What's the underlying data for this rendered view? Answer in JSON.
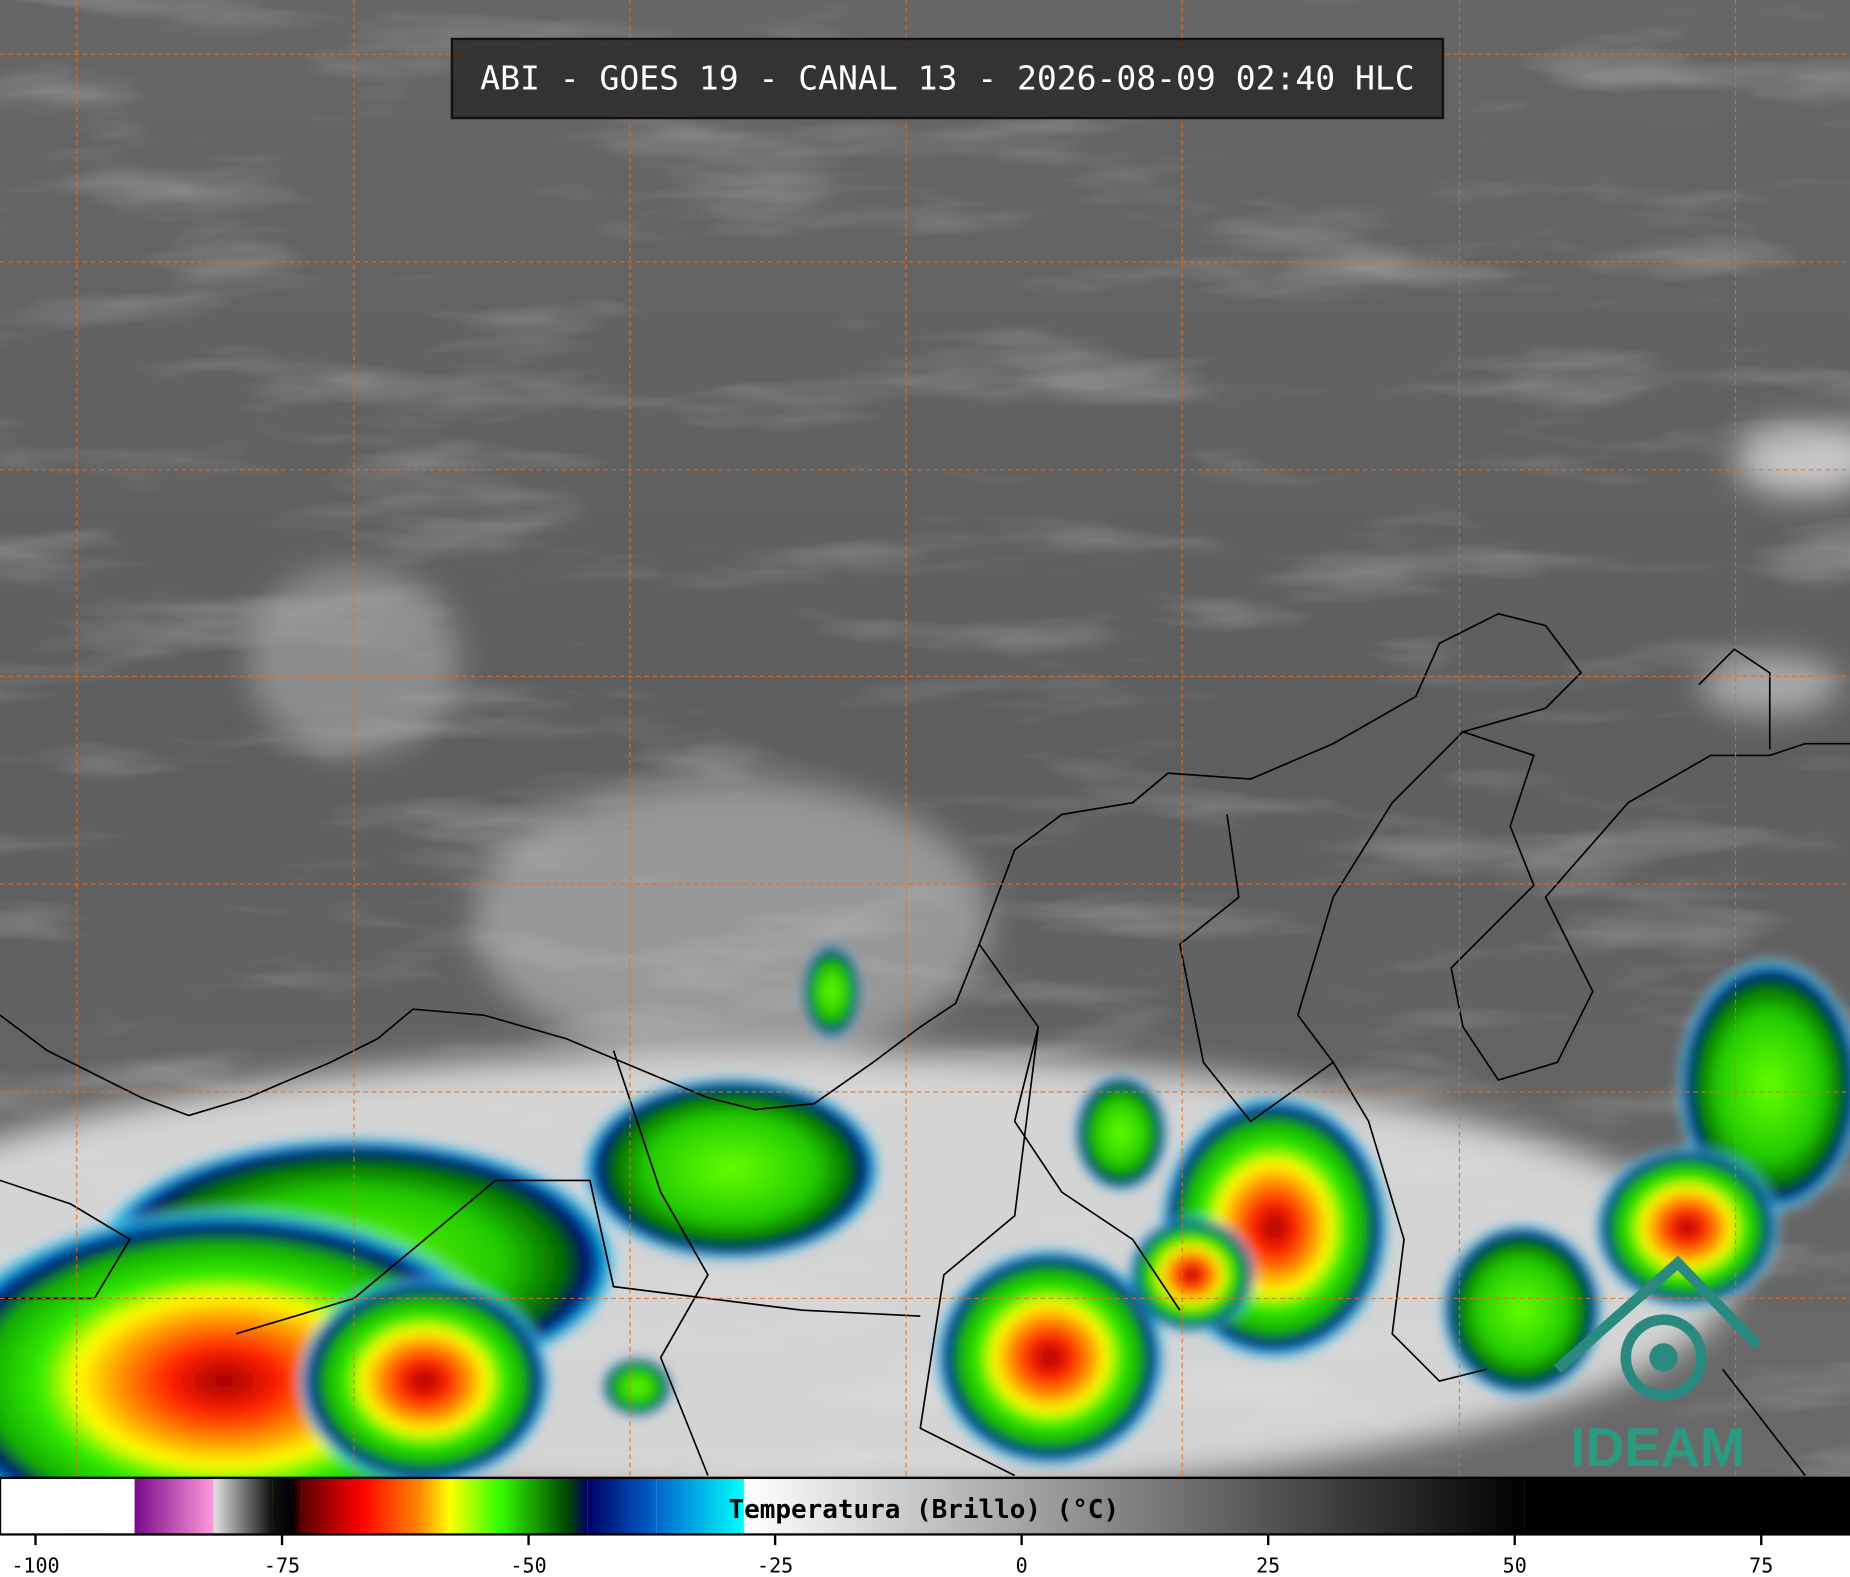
{
  "header": {
    "title": "ABI - GOES 19 - CANAL 13 - 2026-08-09 02:40 HLC"
  },
  "colorbar": {
    "label": "Temperatura (Brillo) (°C)",
    "lim": [
      -103.6,
      84
    ],
    "ticks": [
      -100,
      -75,
      -50,
      -25,
      0,
      25,
      50,
      75
    ],
    "colormap": [
      {
        "value": -90,
        "color": "#ffffff"
      },
      {
        "value": -89.9,
        "color": "#7a0a8a"
      },
      {
        "value": -82,
        "color": "#ff99dd"
      },
      {
        "value": -81.9,
        "color": "#e0e0e0"
      },
      {
        "value": -76,
        "color": "#111111"
      },
      {
        "value": -74,
        "color": "#000000"
      },
      {
        "value": -73,
        "color": "#5a0000"
      },
      {
        "value": -67,
        "color": "#ff0000"
      },
      {
        "value": -61,
        "color": "#ff8800"
      },
      {
        "value": -58,
        "color": "#ffff00"
      },
      {
        "value": -53,
        "color": "#33ff00"
      },
      {
        "value": -46,
        "color": "#004400"
      },
      {
        "value": -44,
        "color": "#000066"
      },
      {
        "value": -37,
        "color": "#0066cc"
      },
      {
        "value": -28.2,
        "color": "#00ffff"
      },
      {
        "value": -28.1,
        "color": "#ffffff"
      },
      {
        "value": 51,
        "color": "#000000"
      }
    ]
  },
  "logo": {
    "text": "IDEAM"
  }
}
